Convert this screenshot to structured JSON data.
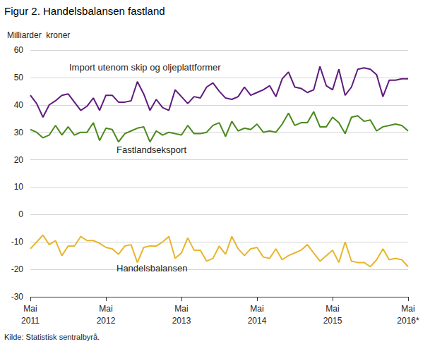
{
  "chart_data": {
    "type": "line",
    "title": "Figur 2. Handelsbalansen fastland",
    "y_label": "Milliarder  kroner",
    "annotations": [
      "Kilde: Statistisk sentralbyrå."
    ],
    "categories": [
      "Mai\n2011",
      null,
      null,
      null,
      null,
      null,
      null,
      null,
      null,
      null,
      null,
      null,
      "Mai\n2012",
      null,
      null,
      null,
      null,
      null,
      null,
      null,
      null,
      null,
      null,
      null,
      "Mai\n2013",
      null,
      null,
      null,
      null,
      null,
      null,
      null,
      null,
      null,
      null,
      null,
      "Mai\n2014",
      null,
      null,
      null,
      null,
      null,
      null,
      null,
      null,
      null,
      null,
      null,
      "Mai\n2015",
      null,
      null,
      null,
      null,
      null,
      null,
      null,
      null,
      null,
      null,
      null,
      "Mai\n2016*"
    ],
    "ylim": [
      -30,
      60
    ],
    "yticks": [
      -30,
      -20,
      -10,
      0,
      10,
      20,
      30,
      40,
      50,
      60
    ],
    "grid": true,
    "series": [
      {
        "name": "Import utenom skip og oljeplattformer",
        "color": "#5f1b7d",
        "values": [
          43.5,
          40.5,
          35.5,
          40,
          41.5,
          43.5,
          44,
          41,
          38,
          39.5,
          42.5,
          38,
          43.5,
          43.5,
          41,
          41,
          41.5,
          48.5,
          44,
          38,
          42,
          39,
          38,
          45.5,
          43,
          40.5,
          43,
          42.5,
          46.5,
          48,
          45,
          42.5,
          42,
          43,
          46.5,
          43.5,
          44.5,
          45.5,
          47,
          43,
          49.5,
          52,
          46.5,
          46,
          44.5,
          45.5,
          54,
          47,
          45.5,
          53,
          43.5,
          46.5,
          53,
          53.5,
          53,
          51,
          43,
          49,
          49,
          49.5,
          49.5
        ]
      },
      {
        "name": "Fastlandseksport",
        "color": "#4a8a1c",
        "values": [
          31,
          30,
          28,
          29,
          32.5,
          29,
          32,
          29,
          30,
          30,
          33.5,
          27,
          31.5,
          31,
          26.5,
          29.5,
          30.5,
          31.5,
          32,
          26.5,
          30.5,
          29,
          30,
          29.5,
          29,
          32.5,
          29.5,
          29.5,
          30,
          32.5,
          33.5,
          28.5,
          34,
          30.5,
          31.5,
          31,
          33,
          30,
          30.5,
          30,
          33,
          37,
          32.5,
          33.5,
          33.5,
          37.5,
          32,
          32,
          35.5,
          33.5,
          29.5,
          35.5,
          36,
          34,
          34.5,
          30.5,
          32,
          32.5,
          33,
          32.5,
          30.5
        ]
      },
      {
        "name": "Handelsbalansen",
        "color": "#e8b52e",
        "values": [
          -12.5,
          -10,
          -7.5,
          -11,
          -9.5,
          -15,
          -11.5,
          -11.5,
          -8,
          -9.5,
          -9.5,
          -10.5,
          -12,
          -12.5,
          -14.5,
          -11.5,
          -11,
          -17.5,
          -12,
          -11.5,
          -11.5,
          -10,
          -8,
          -16,
          -14,
          -8.5,
          -13,
          -13,
          -17,
          -16,
          -11.5,
          -14.5,
          -8,
          -12.5,
          -15,
          -12.5,
          -12,
          -15.5,
          -16,
          -12.5,
          -16.5,
          -15,
          -14,
          -13,
          -11,
          -14,
          -17,
          -15,
          -13,
          -17.5,
          -10,
          -17,
          -17.5,
          -17.5,
          -19,
          -16.5,
          -12.5,
          -16.5,
          -16,
          -16.5,
          -19
        ]
      }
    ]
  }
}
